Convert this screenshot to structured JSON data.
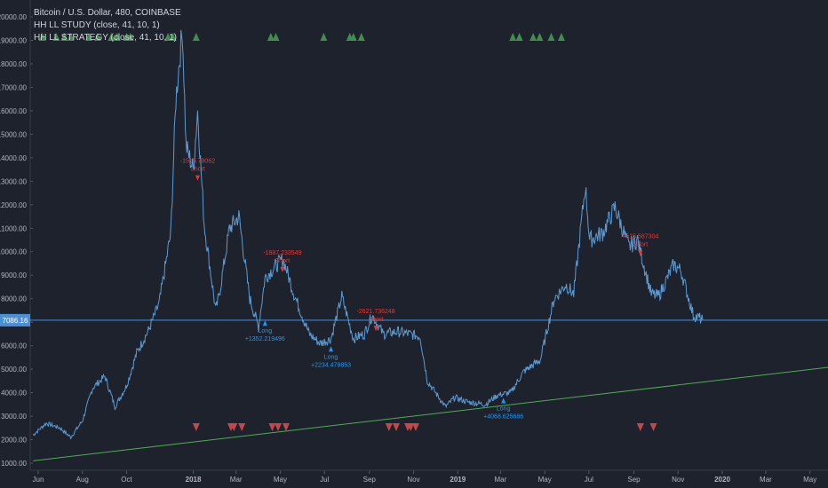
{
  "header": {
    "symbol_line": "Bitcoin / U.S. Dollar, 480, COINBASE",
    "study_line": "HH LL STUDY (close, 41, 10, 1)",
    "strategy_line": "HH LL STRATEGY (close, 41, 10, 1)"
  },
  "colors": {
    "background": "#1e222d",
    "price_line": "#5b9bd5",
    "trend_line": "#4caf50",
    "up_marker": "#3d8f4a",
    "down_marker": "#c4474a",
    "signal_red": "#e53935",
    "signal_blue": "#2196f3",
    "price_label_bg": "#4a90d9"
  },
  "chart_data": {
    "type": "line",
    "title": "",
    "ylim": [
      1000,
      20000
    ],
    "yticks": [
      "1000.00",
      "2000.00",
      "3000.00",
      "4000.00",
      "5000.00",
      "6000.00",
      "7000.00",
      "8000.00",
      "9000.00",
      "10000.00",
      "11000.00",
      "12000.00",
      "13000.00",
      "14000.00",
      "15000.00",
      "16000.00",
      "17000.00",
      "18000.00",
      "19000.00",
      "20000.00"
    ],
    "xticks": [
      "Jun",
      "Aug",
      "Oct",
      "2018",
      "Mar",
      "May",
      "Jul",
      "Sep",
      "Nov",
      "2019",
      "Mar",
      "May",
      "Jul",
      "Sep",
      "Nov",
      "2020",
      "Mar",
      "May"
    ],
    "current_price": "7086.16",
    "series": [
      {
        "x": [
          "2017-05-25",
          "2017-06-12",
          "2017-07-01",
          "2017-07-16",
          "2017-08-01",
          "2017-08-15",
          "2017-09-01",
          "2017-09-15",
          "2017-10-01",
          "2017-10-15",
          "2017-11-01",
          "2017-11-15",
          "2017-12-01",
          "2017-12-08",
          "2017-12-17",
          "2017-12-22",
          "2018-01-01",
          "2018-01-07",
          "2018-01-16",
          "2018-02-01",
          "2018-02-06",
          "2018-02-20",
          "2018-03-05",
          "2018-03-20",
          "2018-04-01",
          "2018-04-10",
          "2018-04-25",
          "2018-05-05",
          "2018-05-20",
          "2018-06-10",
          "2018-06-25",
          "2018-07-10",
          "2018-07-25",
          "2018-08-10",
          "2018-08-25",
          "2018-09-05",
          "2018-09-20",
          "2018-10-10",
          "2018-11-10",
          "2018-11-20",
          "2018-12-15",
          "2018-12-28",
          "2019-01-15",
          "2019-02-08",
          "2019-02-25",
          "2019-03-15",
          "2019-04-02",
          "2019-04-25",
          "2019-05-14",
          "2019-05-30",
          "2019-06-10",
          "2019-06-26",
          "2019-07-02",
          "2019-07-20",
          "2019-08-06",
          "2019-08-25",
          "2019-09-06",
          "2019-09-25",
          "2019-10-05",
          "2019-10-26",
          "2019-11-05",
          "2019-11-22",
          "2019-12-05"
        ],
        "y": [
          2200,
          2700,
          2500,
          2100,
          2800,
          4200,
          4700,
          3400,
          4300,
          5700,
          6700,
          7800,
          10800,
          16500,
          19500,
          14500,
          13500,
          16000,
          11200,
          7500,
          8200,
          11000,
          11500,
          8000,
          6800,
          8900,
          9400,
          9700,
          8200,
          6500,
          6100,
          6300,
          8100,
          6300,
          6500,
          7300,
          6500,
          6600,
          6400,
          4500,
          3400,
          3800,
          3600,
          3500,
          3900,
          4000,
          4900,
          5400,
          8000,
          8600,
          8200,
          12800,
          10500,
          10800,
          11900,
          10200,
          10500,
          8200,
          8100,
          9450,
          9200,
          7300,
          7100
        ]
      },
      {
        "name": "",
        "x": [
          "2017-05-25",
          "2020-06-01"
        ],
        "y": [
          1100,
          5100
        ]
      }
    ],
    "signals": [
      {
        "date": "2018-01-07",
        "price": 13100,
        "lines": [
          "-1515.79062",
          "Short"
        ]
      },
      {
        "date": "2018-04-10",
        "price": 7000,
        "lines": [
          "Long",
          "+1352.219496"
        ]
      },
      {
        "date": "2018-05-04",
        "price": 9200,
        "lines": [
          "-1887.233549",
          "Short"
        ]
      },
      {
        "date": "2018-07-10",
        "price": 5900,
        "lines": [
          "Long",
          "+2234.478853"
        ]
      },
      {
        "date": "2018-09-10",
        "price": 6700,
        "lines": [
          "-2621.736248",
          "Short"
        ]
      },
      {
        "date": "2019-03-05",
        "price": 3700,
        "lines": [
          "Long",
          "+4068.625686"
        ]
      },
      {
        "date": "2019-09-10",
        "price": 9900,
        "lines": [
          "+515.587304",
          "Short"
        ]
      }
    ],
    "up_markers": [
      "2017-06-07",
      "2017-06-26",
      "2017-07-07",
      "2017-07-16",
      "2017-08-10",
      "2017-08-22",
      "2017-09-10",
      "2017-09-18",
      "2017-10-01",
      "2017-10-06",
      "2017-11-27",
      "2017-12-04",
      "2018-01-05",
      "2018-04-18",
      "2018-04-25",
      "2018-06-30",
      "2018-08-05",
      "2018-08-10",
      "2018-08-21",
      "2019-03-18",
      "2019-03-27",
      "2019-04-15",
      "2019-04-24",
      "2019-05-10",
      "2019-05-24"
    ],
    "down_markers": [
      "2018-01-05",
      "2018-02-22",
      "2018-02-26",
      "2018-03-09",
      "2018-04-20",
      "2018-04-28",
      "2018-05-09",
      "2018-09-28",
      "2018-10-08",
      "2018-10-24",
      "2018-10-28",
      "2018-11-04",
      "2019-09-10",
      "2019-09-28"
    ]
  }
}
